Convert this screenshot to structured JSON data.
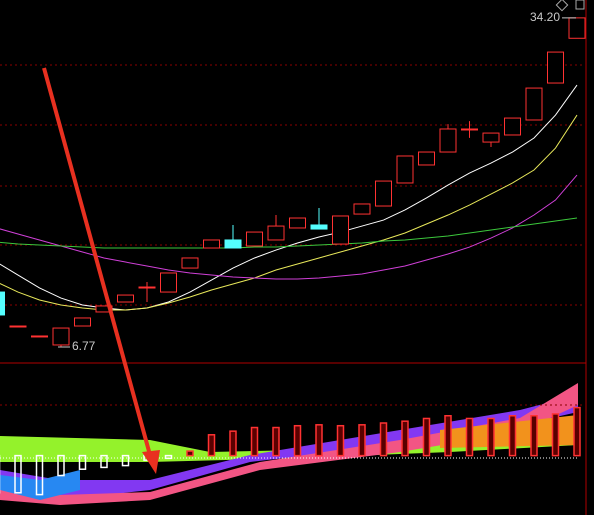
{
  "chart_data": {
    "type": "candlestick",
    "open": [
      11.35,
      8.52,
      7.69,
      6.94,
      8.52,
      9.69,
      10.52,
      11.77,
      11.35,
      13.35,
      15.02,
      15.69,
      15.19,
      15.69,
      16.69,
      16.94,
      15.35,
      17.85,
      18.52,
      20.44,
      21.94,
      23.02,
      24.94,
      23.85,
      24.44,
      25.69,
      28.77,
      32.5
    ],
    "close": [
      9.44,
      8.52,
      7.69,
      8.35,
      9.19,
      10.19,
      11.1,
      11.77,
      12.94,
      14.19,
      15.69,
      15.02,
      16.35,
      16.85,
      17.52,
      16.6,
      17.69,
      18.69,
      20.6,
      22.69,
      23.02,
      24.94,
      24.94,
      24.6,
      25.85,
      28.35,
      31.35,
      34.2
    ],
    "high": [
      11.35,
      8.52,
      7.69,
      8.35,
      9.19,
      10.19,
      11.1,
      12.19,
      12.94,
      14.19,
      15.69,
      16.94,
      16.35,
      17.77,
      17.52,
      18.35,
      17.69,
      18.69,
      20.6,
      22.69,
      23.02,
      25.35,
      25.6,
      24.6,
      25.85,
      28.35,
      31.35,
      34.2
    ],
    "low": [
      9.44,
      8.52,
      7.69,
      6.77,
      8.52,
      9.69,
      10.52,
      10.52,
      11.35,
      13.35,
      15.02,
      15.02,
      15.19,
      15.69,
      16.69,
      16.6,
      15.35,
      17.85,
      18.52,
      20.44,
      21.94,
      23.02,
      24.2,
      23.44,
      24.44,
      25.69,
      28.77,
      32.5
    ],
    "ylim": [
      5.52,
      35.69
    ],
    "annotations": [
      {
        "value": 34.2,
        "label": "34.20"
      },
      {
        "value": 6.77,
        "label": "6.77"
      }
    ],
    "lines": [
      {
        "color": "#ffffff",
        "values": [
          13.85,
          12.77,
          11.69,
          10.85,
          10.27,
          10.02,
          9.85,
          10.02,
          10.52,
          11.35,
          12.35,
          13.35,
          14.19,
          14.85,
          15.44,
          15.94,
          16.35,
          16.85,
          17.35,
          18.19,
          19.19,
          20.27,
          21.27,
          22.1,
          23.02,
          24.19,
          26.1,
          28.6
        ]
      },
      {
        "color": "#e8e85a",
        "values": [
          12.19,
          11.35,
          10.69,
          10.27,
          10.02,
          9.85,
          9.85,
          10.02,
          10.44,
          10.94,
          11.52,
          12.02,
          12.52,
          13.19,
          13.69,
          14.19,
          14.69,
          15.19,
          15.69,
          16.27,
          17.02,
          17.77,
          18.6,
          19.52,
          20.44,
          21.52,
          23.35,
          26.1
        ]
      },
      {
        "color": "#d040d8",
        "values": [
          16.69,
          16.19,
          15.69,
          15.19,
          14.69,
          14.19,
          13.85,
          13.52,
          13.19,
          12.94,
          12.77,
          12.6,
          12.52,
          12.44,
          12.44,
          12.52,
          12.69,
          12.85,
          13.19,
          13.52,
          14.02,
          14.52,
          15.1,
          15.85,
          16.69,
          17.77,
          19.02,
          21.1
        ]
      },
      {
        "color": "#3cc83c",
        "values": [
          15.52,
          15.35,
          15.27,
          15.19,
          15.1,
          15.02,
          15.02,
          15.02,
          15.02,
          15.02,
          15.02,
          15.02,
          15.1,
          15.1,
          15.19,
          15.27,
          15.35,
          15.44,
          15.6,
          15.69,
          15.85,
          16.02,
          16.27,
          16.52,
          16.77,
          17.02,
          17.27,
          17.52
        ]
      }
    ],
    "up_color": "#ff3232",
    "down_color": "#54ffff",
    "indicator": {
      "ylim": [
        -60,
        100
      ],
      "up_color": "#ff3232",
      "down_color": "#ffffff",
      "values": [
        -41,
        -41,
        -43,
        -22,
        -15,
        -13,
        -11,
        -5,
        -3,
        5,
        23,
        27,
        31,
        31,
        33,
        34,
        33,
        34,
        36,
        38,
        41,
        44,
        41,
        41,
        44,
        44,
        46,
        53
      ]
    }
  }
}
